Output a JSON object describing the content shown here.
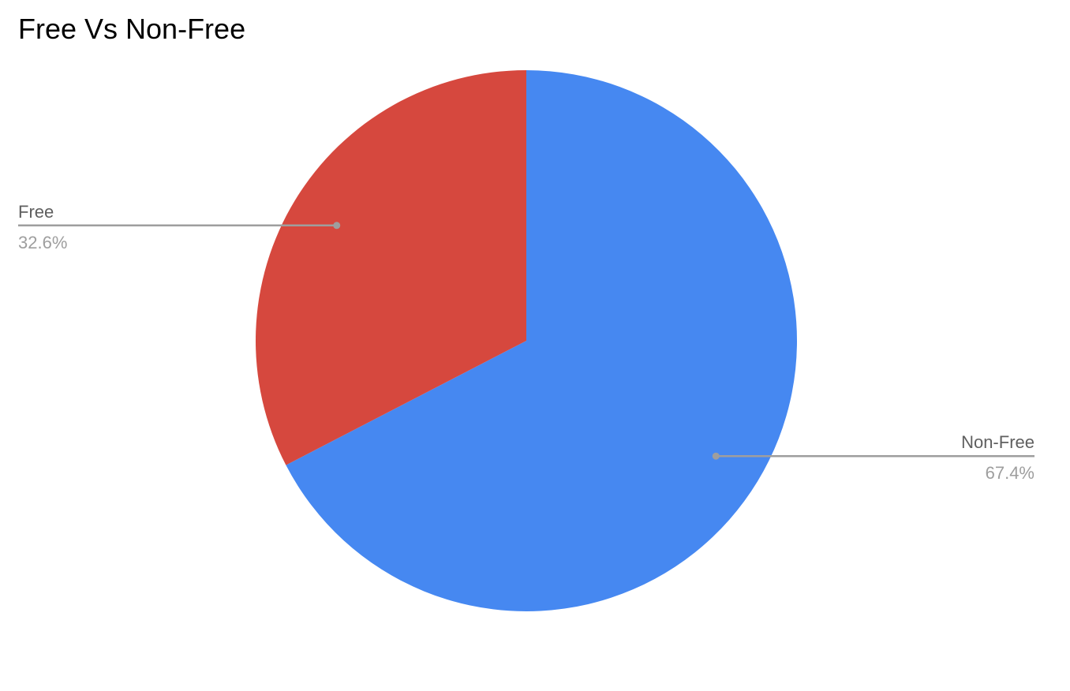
{
  "chart_data": {
    "type": "pie",
    "title": "Free Vs Non-Free",
    "slices": [
      {
        "label": "Non-Free",
        "value": 67.4,
        "display": "67.4%",
        "color": "#4688f1"
      },
      {
        "label": "Free",
        "value": 32.6,
        "display": "32.6%",
        "color": "#d6483e"
      }
    ],
    "start": "12 o'clock",
    "direction": "clockwise",
    "legend": "none",
    "label_style": "leader lines"
  }
}
